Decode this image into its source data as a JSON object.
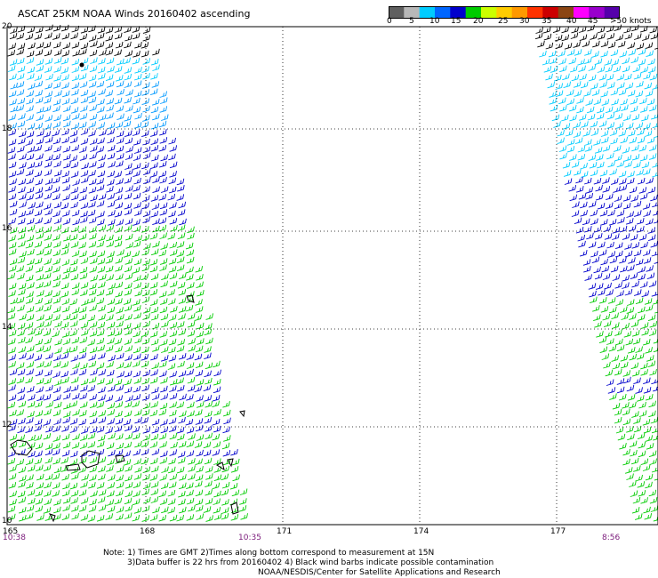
{
  "title": "ASCAT 25KM NOAA Winds 20160402 ascending",
  "colorbar": {
    "colors": [
      "#606060",
      "#b8b8b8",
      "#00ccff",
      "#0066ff",
      "#0000cc",
      "#00cc00",
      "#ccff00",
      "#ffcc00",
      "#ff9900",
      "#ff3300",
      "#cc0000",
      "#8b4513",
      "#ff00ff",
      "#9900cc",
      "#5500aa"
    ],
    "labels": [
      "0",
      "5",
      "10",
      "15",
      "20",
      "25",
      "30",
      "35",
      "40",
      "45",
      ">50 knots"
    ]
  },
  "map": {
    "lat_labels": [
      "20",
      "18",
      "16",
      "14",
      "12",
      "10"
    ],
    "lon_labels": [
      "165",
      "168",
      "171",
      "174",
      "177"
    ],
    "pass_times": [
      "10:38",
      "10:35",
      "8:56"
    ]
  },
  "notes": {
    "line1": "Note: 1) Times are GMT 2)Times along bottom correspond to measurement at 15N",
    "line2": "3)Data buffer is 22 hrs from 20160402 4) Black wind barbs indicate possible contamination",
    "line3": "NOAA/NESDIS/Center for Satellite Applications and Research"
  }
}
